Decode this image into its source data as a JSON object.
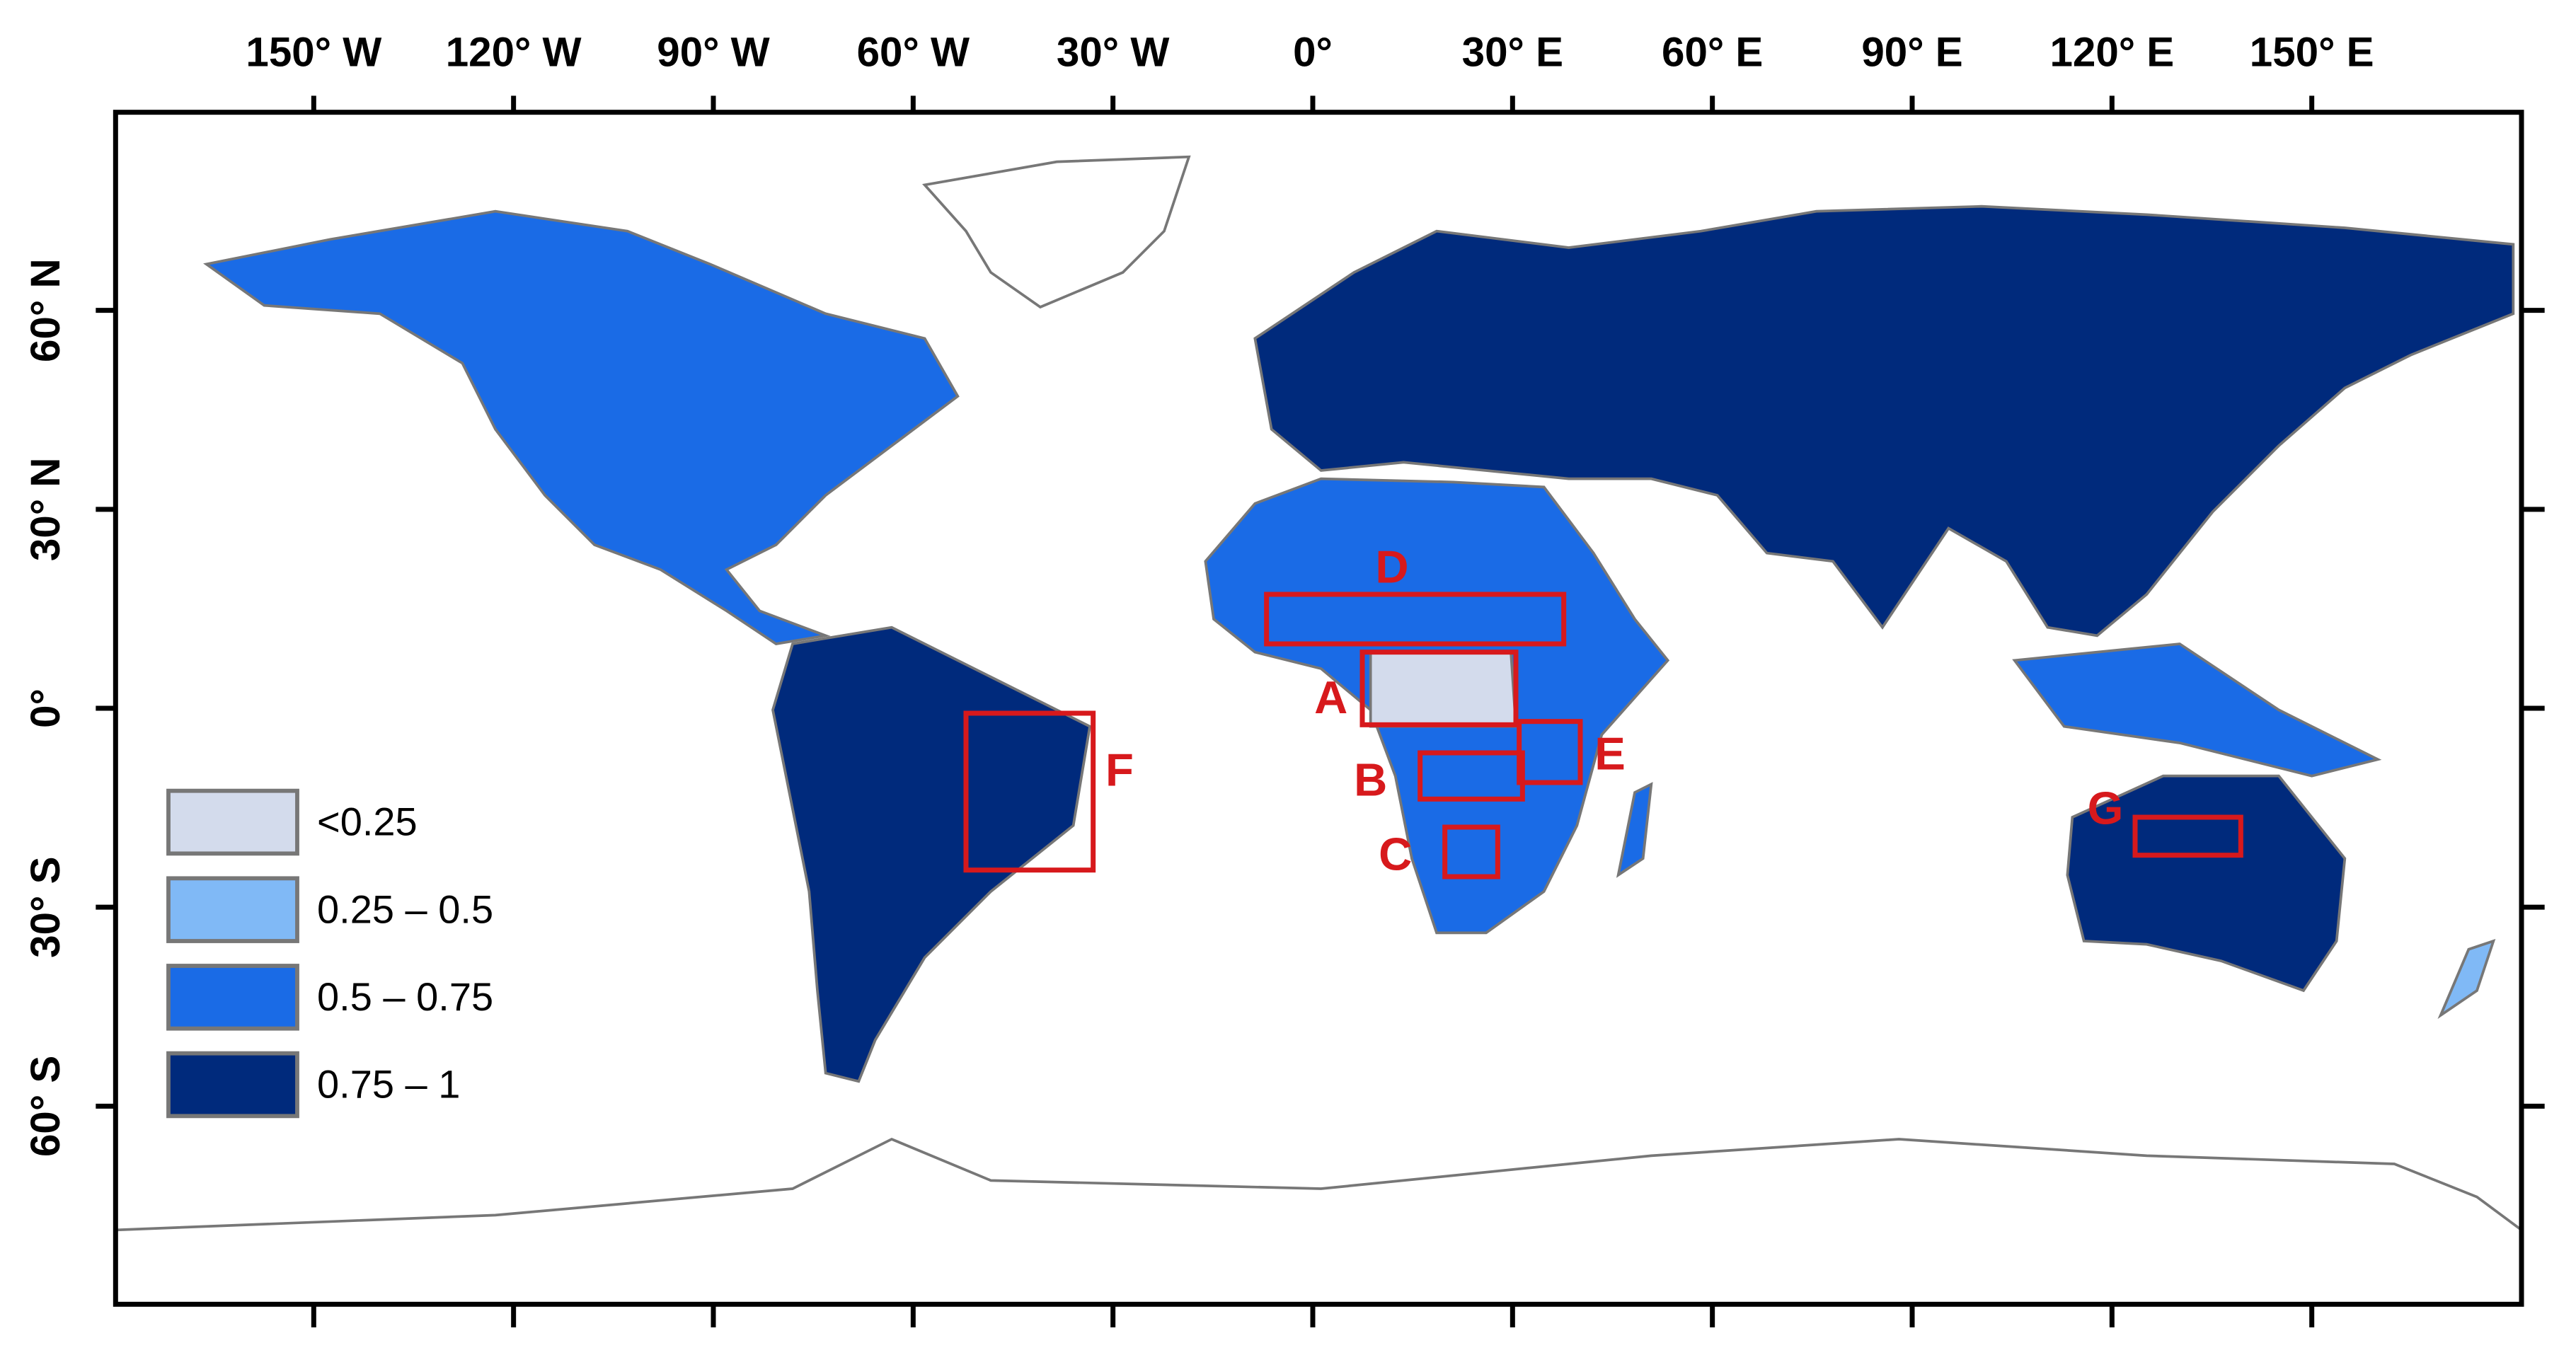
{
  "map": {
    "lon_ticks": [
      {
        "value": -150,
        "label": "150° W"
      },
      {
        "value": -120,
        "label": "120° W"
      },
      {
        "value": -90,
        "label": "90° W"
      },
      {
        "value": -60,
        "label": "60° W"
      },
      {
        "value": -30,
        "label": "30° W"
      },
      {
        "value": 0,
        "label": "0°"
      },
      {
        "value": 30,
        "label": "30° E"
      },
      {
        "value": 60,
        "label": "60° E"
      },
      {
        "value": 90,
        "label": "90° E"
      },
      {
        "value": 120,
        "label": "120° E"
      },
      {
        "value": 150,
        "label": "150° E"
      }
    ],
    "lat_ticks": [
      {
        "value": 60,
        "label": "60° N"
      },
      {
        "value": 30,
        "label": "30° N"
      },
      {
        "value": 0,
        "label": "0°"
      },
      {
        "value": -30,
        "label": "30° S"
      },
      {
        "value": -60,
        "label": "60° S"
      }
    ],
    "legend": [
      {
        "label": "<0.25",
        "color": "#d3dbec"
      },
      {
        "label": "0.25 – 0.5",
        "color": "#80b9f6"
      },
      {
        "label": "0.5 – 0.75",
        "color": "#1a6be6"
      },
      {
        "label": "0.75 – 1",
        "color": "#002a7c"
      }
    ],
    "regions": [
      "D",
      "A",
      "F",
      "E",
      "B",
      "C",
      "G"
    ]
  }
}
